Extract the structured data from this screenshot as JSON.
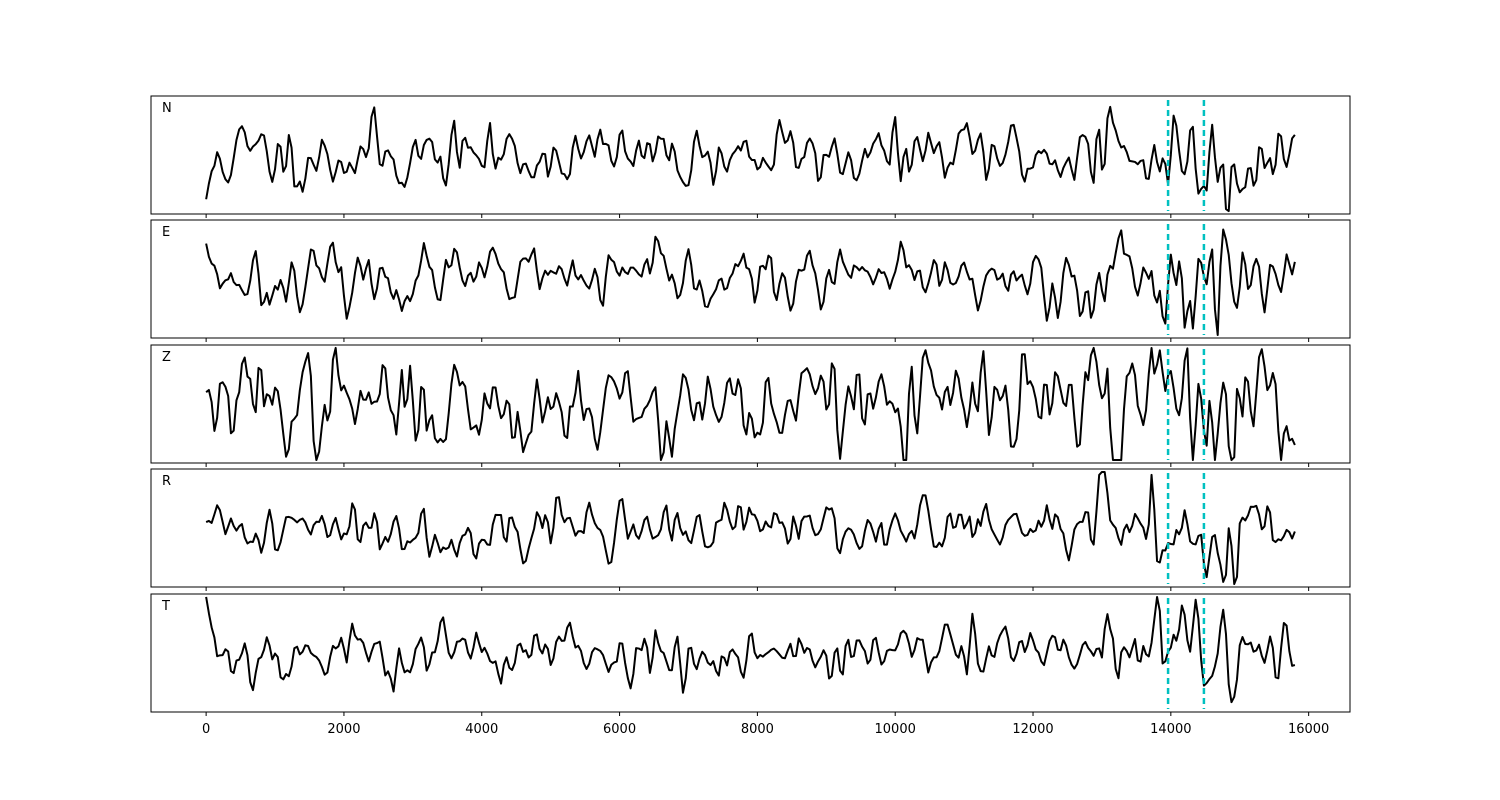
{
  "chart_data": {
    "type": "line",
    "title": "",
    "xlabel": "",
    "ylabel": "",
    "xlim": [
      -800,
      16600
    ],
    "x_ticks": [
      0,
      2000,
      4000,
      6000,
      8000,
      10000,
      12000,
      14000,
      16000
    ],
    "x_tick_labels": [
      "0",
      "2000",
      "4000",
      "6000",
      "8000",
      "10000",
      "12000",
      "14000",
      "16000"
    ],
    "x_range": [
      0,
      15800
    ],
    "sample_step": 40,
    "grid": false,
    "legend": "none",
    "trace_color": "#000000",
    "marker_color": "#00c0c0",
    "markers_x": [
      13960,
      14480
    ],
    "panels": [
      {
        "label": "N",
        "ylim": [
          -1.0,
          1.0
        ],
        "seed": 11,
        "base_amp": 0.28,
        "onset": 0.55,
        "quiet_start": -0.75
      },
      {
        "label": "E",
        "ylim": [
          -1.0,
          1.0
        ],
        "seed": 23,
        "base_amp": 0.25,
        "onset": 0.55,
        "quiet_start": 0.6
      },
      {
        "label": "Z",
        "ylim": [
          -1.0,
          1.0
        ],
        "seed": 37,
        "base_amp": 0.42,
        "onset": 0.55,
        "quiet_start": 0.2
      },
      {
        "label": "R",
        "ylim": [
          -1.0,
          1.0
        ],
        "seed": 41,
        "base_amp": 0.24,
        "onset": 0.55,
        "quiet_start": 0.1
      },
      {
        "label": "T",
        "ylim": [
          -1.0,
          1.0
        ],
        "seed": 53,
        "base_amp": 0.25,
        "onset": 0.55,
        "quiet_start": 0.95
      }
    ]
  }
}
